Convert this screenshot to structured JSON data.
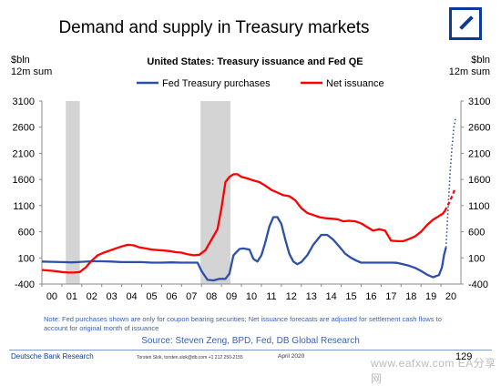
{
  "header": {
    "title": "Demand and supply in Treasury markets",
    "logo_icon": "deutsche-bank-logo-icon",
    "brand_color": "#0b3a9a"
  },
  "units": {
    "left": [
      "$bln",
      "12m sum"
    ],
    "right": [
      "$bln",
      "12m sum"
    ]
  },
  "chart_data": {
    "type": "line",
    "title": "United States: Treasury issuance and Fed QE",
    "ylim": [
      -400,
      3100
    ],
    "yticks": [
      "3100",
      "2600",
      "2100",
      "1600",
      "1100",
      "600",
      "100",
      "-400"
    ],
    "xlim": [
      2000,
      2021
    ],
    "xticks": [
      "00",
      "01",
      "02",
      "03",
      "04",
      "05",
      "06",
      "07",
      "08",
      "09",
      "10",
      "11",
      "12",
      "13",
      "14",
      "15",
      "16",
      "17",
      "18",
      "19",
      "20"
    ],
    "grid": false,
    "legend_position": "top",
    "recessions": [
      [
        2001.2,
        2001.9
      ],
      [
        2007.95,
        2009.45
      ]
    ],
    "series": [
      {
        "name": "Fed Treasury purchases",
        "color": "#2e4fa8",
        "x": [
          2000,
          2000.5,
          2001,
          2001.5,
          2002,
          2002.5,
          2003,
          2003.5,
          2004,
          2004.5,
          2005,
          2005.5,
          2006,
          2006.5,
          2007,
          2007.5,
          2007.8,
          2008,
          2008.3,
          2008.6,
          2008.9,
          2009.2,
          2009.4,
          2009.6,
          2009.9,
          2010.1,
          2010.4,
          2010.6,
          2010.8,
          2011.0,
          2011.2,
          2011.4,
          2011.6,
          2011.8,
          2012.0,
          2012.2,
          2012.4,
          2012.6,
          2012.8,
          2013.0,
          2013.3,
          2013.6,
          2014.0,
          2014.3,
          2014.6,
          2014.9,
          2015.2,
          2015.5,
          2015.8,
          2016.0,
          2016.3,
          2016.6,
          2016.9,
          2017.2,
          2017.5,
          2017.8,
          2018.1,
          2018.4,
          2018.7,
          2019.0,
          2019.3,
          2019.6,
          2019.9,
          2020.05,
          2020.15,
          2020.25
        ],
        "y": [
          30,
          25,
          20,
          15,
          25,
          35,
          35,
          30,
          20,
          20,
          20,
          10,
          10,
          15,
          10,
          10,
          10,
          -150,
          -320,
          -330,
          -300,
          -300,
          -200,
          150,
          270,
          280,
          260,
          80,
          30,
          150,
          400,
          700,
          880,
          880,
          750,
          450,
          180,
          30,
          -20,
          20,
          150,
          350,
          540,
          540,
          450,
          320,
          180,
          100,
          40,
          10,
          10,
          10,
          10,
          10,
          10,
          5,
          -20,
          -50,
          -90,
          -150,
          -220,
          -270,
          -230,
          -80,
          150,
          300
        ],
        "forecast_x": [
          2020.25,
          2020.35,
          2020.45,
          2020.55,
          2020.65,
          2020.75
        ],
        "forecast_y": [
          300,
          1000,
          1700,
          2200,
          2600,
          2800
        ]
      },
      {
        "name": "Net issuance",
        "color": "#ff0000",
        "x": [
          2000,
          2000.3,
          2000.6,
          2001,
          2001.3,
          2001.6,
          2001.9,
          2002.2,
          2002.5,
          2002.8,
          2003.1,
          2003.4,
          2003.7,
          2004.0,
          2004.3,
          2004.6,
          2004.9,
          2005.2,
          2005.5,
          2005.8,
          2006.1,
          2006.4,
          2006.7,
          2007.0,
          2007.3,
          2007.6,
          2007.9,
          2008.2,
          2008.5,
          2008.8,
          2009.0,
          2009.2,
          2009.4,
          2009.6,
          2009.8,
          2010.0,
          2010.3,
          2010.6,
          2010.9,
          2011.2,
          2011.5,
          2011.8,
          2012.1,
          2012.4,
          2012.7,
          2013.0,
          2013.3,
          2013.6,
          2013.9,
          2014.2,
          2014.5,
          2014.8,
          2015.1,
          2015.4,
          2015.7,
          2016.0,
          2016.3,
          2016.6,
          2016.9,
          2017.2,
          2017.5,
          2017.8,
          2018.1,
          2018.4,
          2018.7,
          2019.0,
          2019.3,
          2019.6,
          2019.9,
          2020.1,
          2020.2
        ],
        "y": [
          -130,
          -140,
          -150,
          -170,
          -180,
          -180,
          -170,
          -80,
          50,
          150,
          200,
          240,
          280,
          320,
          350,
          340,
          300,
          280,
          260,
          250,
          240,
          230,
          210,
          200,
          170,
          150,
          160,
          250,
          450,
          650,
          1050,
          1550,
          1650,
          1700,
          1700,
          1650,
          1620,
          1580,
          1550,
          1480,
          1400,
          1350,
          1300,
          1280,
          1200,
          1050,
          960,
          920,
          880,
          860,
          850,
          840,
          800,
          810,
          800,
          760,
          690,
          620,
          650,
          620,
          430,
          420,
          420,
          460,
          510,
          600,
          730,
          830,
          900,
          950,
          1000
        ],
        "forecast_x": [
          2020.2,
          2020.3,
          2020.4,
          2020.5,
          2020.6,
          2020.7
        ],
        "forecast_y": [
          1000,
          1080,
          1150,
          1230,
          1320,
          1420
        ]
      }
    ]
  },
  "notes": {
    "note": "Note: Fed purchases shown are only for coupon bearing securities; Net issuance forecasts are adjusted for settlement cash flows to account for original month of issuance",
    "source": "Source: Steven Zeng, BPD, Fed, DB Global  Research"
  },
  "footer": {
    "org": "Deutsche Bank Research",
    "contact": "Torsten Slok, torsten.slok@db.com +1 212 250-2155",
    "date": "April 2020",
    "page": "129",
    "watermark": "www.eafxw.com  EA分享网"
  }
}
